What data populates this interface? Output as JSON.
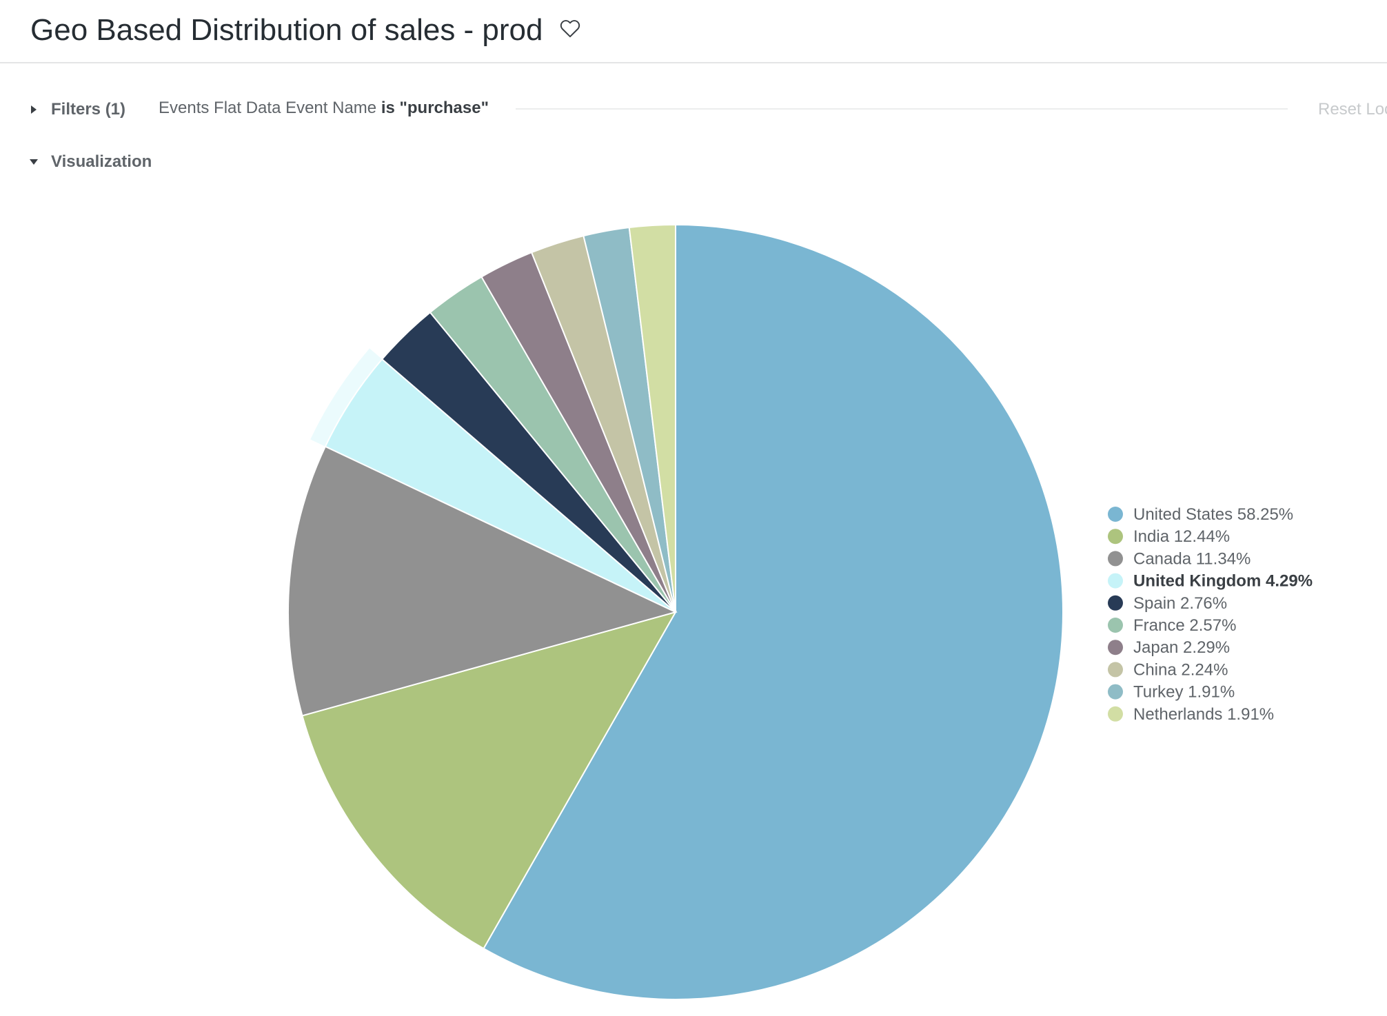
{
  "header": {
    "title": "Geo Based Distribution of sales - prod"
  },
  "filters": {
    "label": "Filters (1)",
    "field": "Events Flat Data Event Name",
    "operator": "is",
    "value": "\"purchase\"",
    "reset_label": "Reset Loc"
  },
  "visualization": {
    "label": "Visualization"
  },
  "chart_data": {
    "type": "pie",
    "title": "",
    "highlighted": "United Kingdom",
    "legend_position": "right",
    "slices": [
      {
        "label": "United States",
        "value": 58.25,
        "display": "United States 58.25%",
        "color": "#7ab6d2"
      },
      {
        "label": "India",
        "value": 12.44,
        "display": "India 12.44%",
        "color": "#adc47e"
      },
      {
        "label": "Canada",
        "value": 11.34,
        "display": "Canada 11.34%",
        "color": "#919191"
      },
      {
        "label": "United Kingdom",
        "value": 4.29,
        "display": "United Kingdom 4.29%",
        "color": "#c6f3f8"
      },
      {
        "label": "Spain",
        "value": 2.76,
        "display": "Spain 2.76%",
        "color": "#283b56"
      },
      {
        "label": "France",
        "value": 2.57,
        "display": "France 2.57%",
        "color": "#9bc4ae"
      },
      {
        "label": "Japan",
        "value": 2.29,
        "display": "Japan 2.29%",
        "color": "#8e7f8a"
      },
      {
        "label": "China",
        "value": 2.24,
        "display": "China 2.24%",
        "color": "#c4c4a6"
      },
      {
        "label": "Turkey",
        "value": 1.91,
        "display": "Turkey 1.91%",
        "color": "#8fbcc6"
      },
      {
        "label": "Netherlands",
        "value": 1.91,
        "display": "Netherlands 1.91%",
        "color": "#d2dea4"
      }
    ]
  }
}
